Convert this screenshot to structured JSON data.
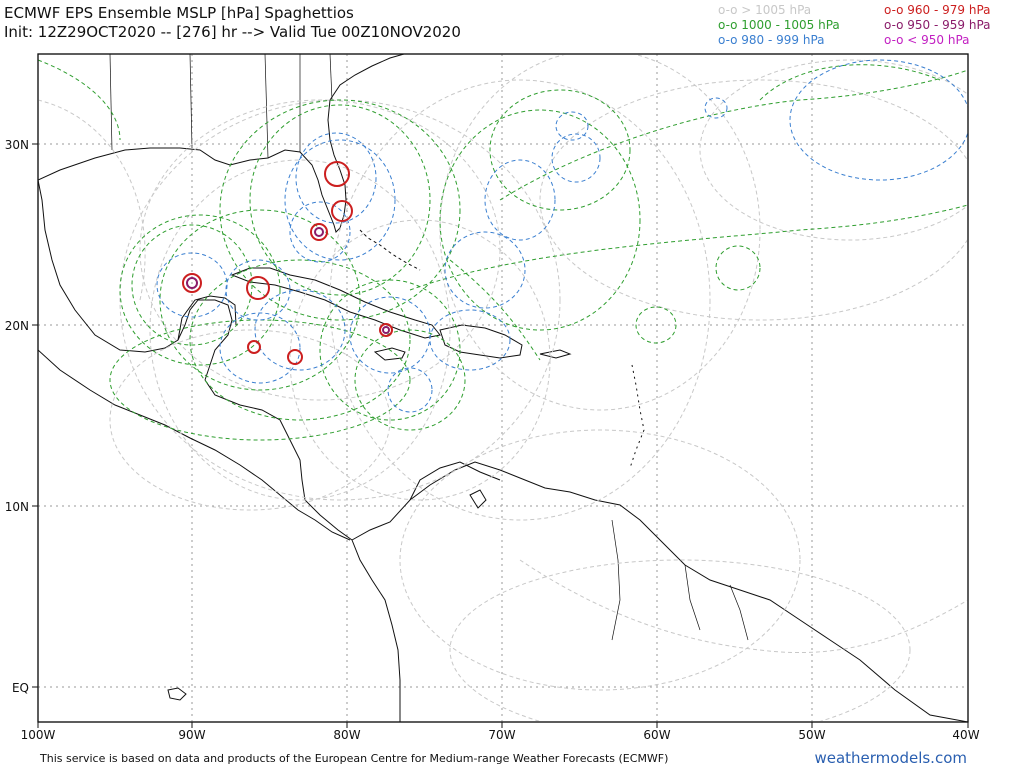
{
  "title": {
    "line1": "ECMWF EPS Ensemble MSLP [hPa] Spaghettios",
    "line2": "Init: 12Z29OCT2020 -- [276] hr --> Valid Tue 00Z10NOV2020"
  },
  "legend": {
    "left": [
      {
        "label": "o-o > 1005 hPa",
        "color": "#c8c8c8"
      },
      {
        "label": "o-o 1000 - 1005 hPa",
        "color": "#2f9e2f"
      },
      {
        "label": "o-o 980 - 999 hPa",
        "color": "#3a7fd0"
      }
    ],
    "right": [
      {
        "label": "o-o 960 - 979 hPa",
        "color": "#cc1f1f"
      },
      {
        "label": "o-o 950 - 959 hPa",
        "color": "#8a1c6a"
      },
      {
        "label": "o-o < 950 hPa",
        "color": "#c21fc2"
      }
    ]
  },
  "axes": {
    "x_ticks": [
      "100W",
      "90W",
      "80W",
      "70W",
      "60W",
      "50W",
      "40W"
    ],
    "y_ticks": [
      "30N",
      "20N",
      "10N",
      "EQ"
    ],
    "lon_range": [
      -100,
      -40
    ],
    "lat_range": [
      -2,
      35
    ]
  },
  "footer": {
    "note": "This service is based on data and products of the European Centre for Medium-range Weather Forecasts (ECMWF)",
    "site": "weathermodels.com"
  },
  "colors": {
    "gt1005": "#c8c8c8",
    "c1000_1005": "#2f9e2f",
    "c980_999": "#3a7fd0",
    "c960_979": "#cc1f1f",
    "c950_959": "#8a1c6a",
    "lt950": "#c21fc2"
  }
}
